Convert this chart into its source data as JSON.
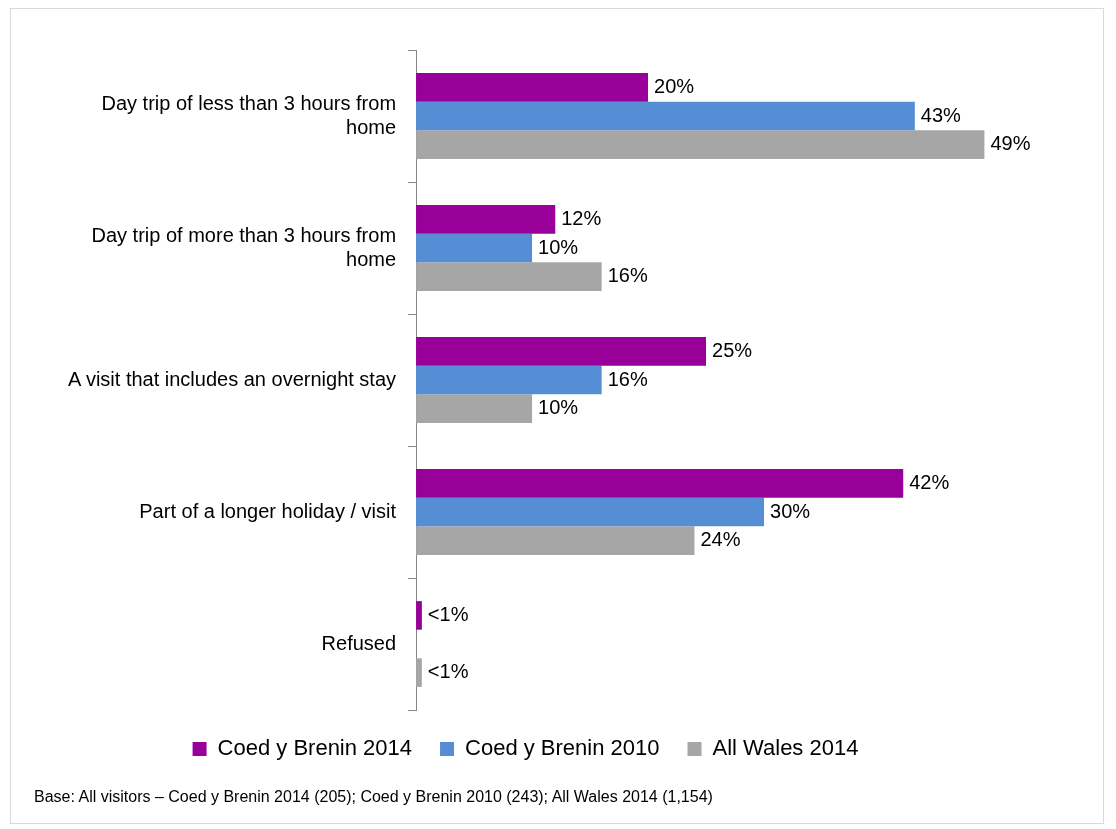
{
  "chart_data": {
    "type": "bar",
    "orientation": "horizontal",
    "categories": [
      "Day trip of less than 3 hours from home",
      "Day trip of more than 3 hours from home",
      "A visit that includes an overnight stay",
      "Part of a longer holiday / visit",
      "Refused"
    ],
    "series": [
      {
        "name": "Coed y Brenin 2014",
        "color": "#990099",
        "values": [
          20,
          12,
          25,
          42,
          0.5
        ],
        "value_labels": [
          "20%",
          "12%",
          "25%",
          "42%",
          "<1%"
        ]
      },
      {
        "name": "Coed y Brenin 2010",
        "color": "#558ed5",
        "values": [
          43,
          10,
          16,
          30,
          null
        ],
        "value_labels": [
          "43%",
          "10%",
          "16%",
          "30%",
          null
        ]
      },
      {
        "name": "All Wales 2014",
        "color": "#a6a6a6",
        "values": [
          49,
          16,
          10,
          24,
          0.5
        ],
        "value_labels": [
          "49%",
          "16%",
          "10%",
          "24%",
          "<1%"
        ]
      }
    ],
    "legend": "bottom",
    "tick_labels": "y",
    "annotations": [
      "Base: All visitors – Coed y Brenin 2014 (205); Coed y Brenin 2010 (243); All Wales 2014 (1,154)"
    ]
  }
}
